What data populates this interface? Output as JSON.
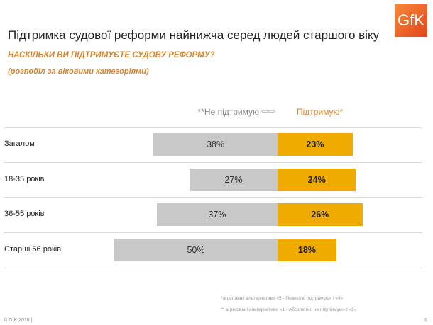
{
  "logo": "GfK",
  "title": "Підтримка судової реформи найнижча серед людей старшого віку",
  "question": "НАСКІЛЬКИ ВИ ПІДТРИМУЄТЕ СУДОВУ РЕФОРМУ?",
  "subtitle": "(розподіл за віковими категоріями)",
  "chart_data": {
    "type": "bar",
    "orientation": "horizontal-diverging",
    "categories": [
      "Загалом",
      "18-35 років",
      "36-55 років",
      "Старші 56 років"
    ],
    "series": [
      {
        "name": "**Не підтримую",
        "values": [
          38,
          27,
          37,
          50
        ],
        "labels": [
          "38%",
          "27%",
          "37%",
          "50%"
        ],
        "color": "#c8c8c8"
      },
      {
        "name": "Підтримую*",
        "values": [
          23,
          24,
          26,
          18
        ],
        "labels": [
          "23%",
          "24%",
          "26%",
          "18%"
        ],
        "color": "#f0ab00"
      }
    ],
    "legend": {
      "neg": "**Не підтримую",
      "arrows": "⇦⇨",
      "pos": "Підтримую*"
    }
  },
  "footnotes": [
    "*агреговані альтернативи «5 - Повністю підтримую» і «4»",
    "** агреговані альтернативи «1 - Абсолютно не підтримую» і «2»"
  ],
  "copyright": "© GfK 2018 |",
  "page": "6"
}
